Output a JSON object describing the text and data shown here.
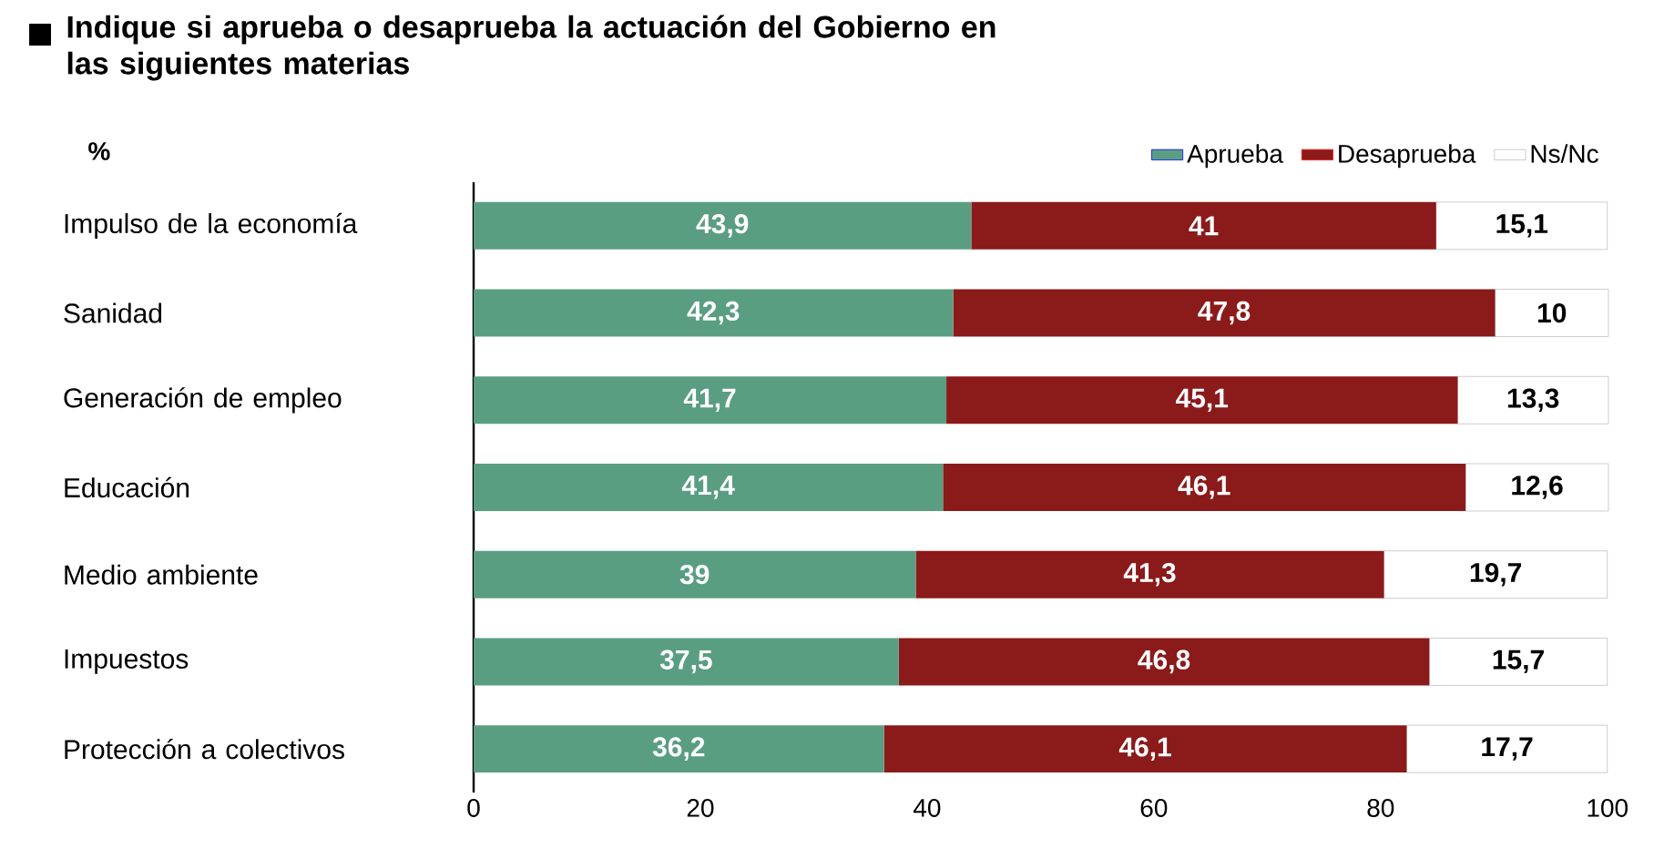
{
  "chart_data": {
    "type": "bar",
    "orientation": "horizontal",
    "stacked": true,
    "title": "Indique si aprueba o desaprueba la actuación del Gobierno en las siguientes materias",
    "subtitle": "%",
    "categories": [
      "Impulso de la economía",
      "Sanidad",
      "Generación de empleo",
      "Educación",
      "Medio ambiente",
      "Impuestos",
      "Protección a colectivos"
    ],
    "series": [
      {
        "name": "Aprueba",
        "color": "#5a9e82",
        "values": [
          43.9,
          42.3,
          41.7,
          41.4,
          39,
          37.5,
          36.2
        ],
        "value_labels": [
          "43,9",
          "42,3",
          "41,7",
          "41,4",
          "39",
          "37,5",
          "36,2"
        ]
      },
      {
        "name": "Desaprueba",
        "color": "#8b1a1a",
        "values": [
          41,
          47.8,
          45.1,
          46.1,
          41.3,
          46.8,
          46.1
        ],
        "value_labels": [
          "41",
          "47,8",
          "45,1",
          "46,1",
          "41,3",
          "46,8",
          "46,1"
        ]
      },
      {
        "name": "Ns/Nc",
        "color": "#ffffff",
        "values": [
          15.1,
          10,
          13.3,
          12.6,
          19.7,
          15.7,
          17.7
        ],
        "value_labels": [
          "15,1",
          "10",
          "13,3",
          "12,6",
          "19,7",
          "15,7",
          "17,7"
        ]
      }
    ],
    "xlim": [
      0,
      100.1
    ],
    "xticks": [
      0,
      20,
      40,
      60,
      80,
      100
    ],
    "grid": false,
    "legend": "top right"
  }
}
